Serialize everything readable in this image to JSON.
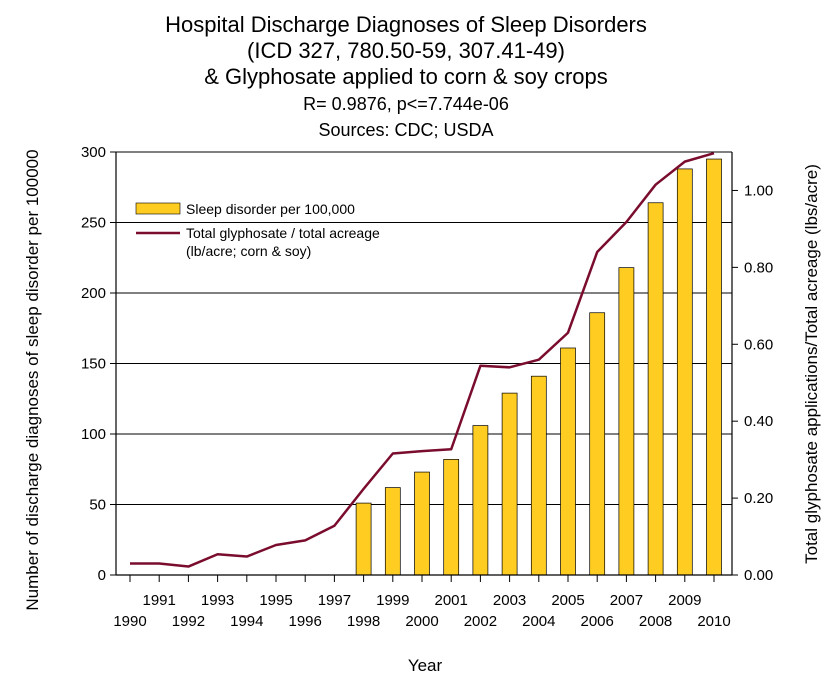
{
  "chart_data": {
    "type": "bar",
    "title_lines": [
      "Hospital Discharge Diagnoses of Sleep Disorders",
      "(ICD 327, 780.50-59, 307.41-49)",
      "& Glyphosate applied to corn & soy crops"
    ],
    "stats_line": "R= 0.9876, p<=7.744e-06",
    "sources_line": "Sources: CDC; USDA",
    "xlabel": "Year",
    "ylabel_left": "Number of discharge diagnoses of sleep disorder per 100000",
    "ylabel_right": "Total glyphosate applications/Total acreage (lbs/acre)",
    "ylim_left": [
      0,
      300
    ],
    "ylim_right": [
      0,
      1.1
    ],
    "yticks_left": [
      "0",
      "50",
      "100",
      "150",
      "200",
      "250",
      "300"
    ],
    "yticks_right": [
      "0.00",
      "0.20",
      "0.40",
      "0.60",
      "0.80",
      "1.00"
    ],
    "x_tick_labels": [
      "1990",
      "1991",
      "1992",
      "1993",
      "1994",
      "1995",
      "1996",
      "1997",
      "1998",
      "1999",
      "2000",
      "2001",
      "2002",
      "2003",
      "2004",
      "2005",
      "2006",
      "2007",
      "2008",
      "2009",
      "2010"
    ],
    "grid": "horizontal",
    "legend_position": "top-left",
    "series": [
      {
        "name": "Sleep disorder per 100,000",
        "type": "bar",
        "axis": "left",
        "color": "#FFCC22",
        "x": [
          1998,
          1999,
          2000,
          2001,
          2002,
          2003,
          2004,
          2005,
          2006,
          2007,
          2008,
          2009,
          2010
        ],
        "values": [
          51,
          62,
          73,
          82,
          106,
          129,
          141,
          161,
          186,
          218,
          264,
          288,
          295
        ]
      },
      {
        "name": "Total glyphosate / total acreage",
        "name_line2": "(lb/acre; corn & soy)",
        "type": "line",
        "axis": "right",
        "color": "#7A0C2E",
        "x": [
          1990,
          1991,
          1992,
          1993,
          1994,
          1995,
          1996,
          1997,
          1998,
          1999,
          2000,
          2001,
          2002,
          2003,
          2004,
          2005,
          2006,
          2007,
          2008,
          2009,
          2010
        ],
        "values": [
          0.03,
          0.03,
          0.022,
          0.054,
          0.048,
          0.078,
          0.09,
          0.128,
          0.224,
          0.316,
          0.322,
          0.327,
          0.544,
          0.54,
          0.56,
          0.63,
          0.84,
          0.918,
          1.015,
          1.075,
          1.097
        ]
      }
    ]
  }
}
